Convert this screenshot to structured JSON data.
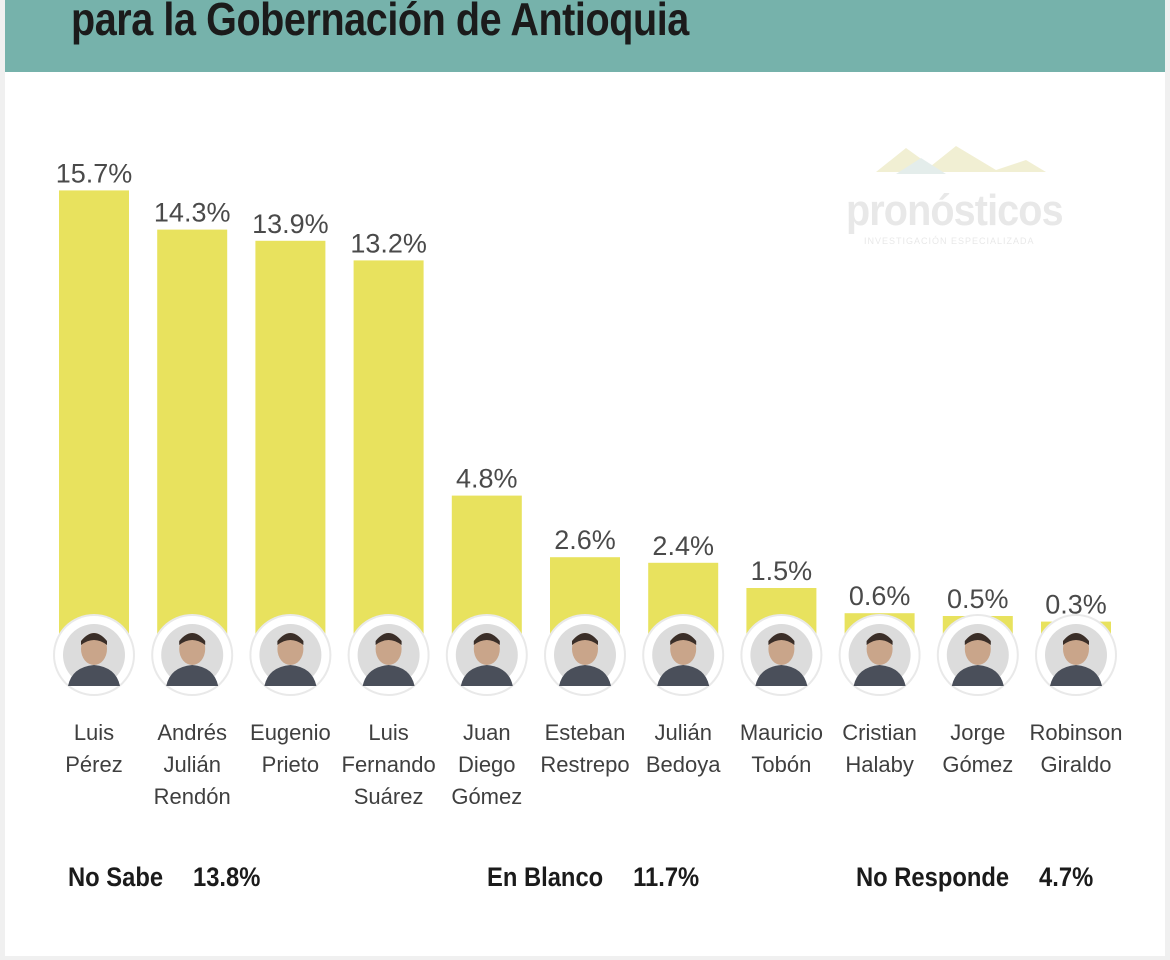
{
  "header": {
    "title": "para la Gobernación de Antioquia",
    "color": "#76b2ab"
  },
  "watermark": {
    "name": "pronósticos",
    "tagline": "INVESTIGACIÓN ESPECIALIZADA"
  },
  "chart_data": {
    "type": "bar",
    "title": "",
    "xlabel": "",
    "ylabel": "",
    "ylim": [
      0,
      16
    ],
    "grid": false,
    "legend": "none",
    "bar_color": "#e8e25e",
    "categories": [
      "Luis Pérez",
      "Andrés Julián Rendón",
      "Eugenio Prieto",
      "Luis Fernando Suárez",
      "Juan Diego Gómez",
      "Esteban Restrepo",
      "Julián Bedoya",
      "Mauricio Tobón",
      "Cristian Halaby",
      "Jorge Gómez",
      "Robinson Giraldo"
    ],
    "name_lines": [
      [
        "Luis",
        "Pérez"
      ],
      [
        "Andrés",
        "Julián",
        "Rendón"
      ],
      [
        "Eugenio",
        "Prieto"
      ],
      [
        "Luis",
        "Fernando",
        "Suárez"
      ],
      [
        "Juan",
        "Diego",
        "Gómez"
      ],
      [
        "Esteban",
        "Restrepo"
      ],
      [
        "Julián",
        "Bedoya"
      ],
      [
        "Mauricio",
        "Tobón"
      ],
      [
        "Cristian",
        "Halaby"
      ],
      [
        "Jorge",
        "Gómez"
      ],
      [
        "Robinson",
        "Giraldo"
      ]
    ],
    "values": [
      15.7,
      14.3,
      13.9,
      13.2,
      4.8,
      2.6,
      2.4,
      1.5,
      0.6,
      0.5,
      0.3
    ],
    "value_labels": [
      "15.7%",
      "14.3%",
      "13.9%",
      "13.2%",
      "4.8%",
      "2.6%",
      "2.4%",
      "1.5%",
      "0.6%",
      "0.5%",
      "0.3%"
    ],
    "avatar_icons": [
      "person-photo",
      "person-photo",
      "person-photo",
      "person-photo",
      "person-photo",
      "person-photo",
      "person-photo",
      "person-photo",
      "person-photo",
      "person-photo",
      "person-photo"
    ]
  },
  "summary": [
    {
      "label": "No Sabe",
      "value": "13.8%"
    },
    {
      "label": "En Blanco",
      "value": "11.7%"
    },
    {
      "label": "No Responde",
      "value": "4.7%"
    }
  ]
}
